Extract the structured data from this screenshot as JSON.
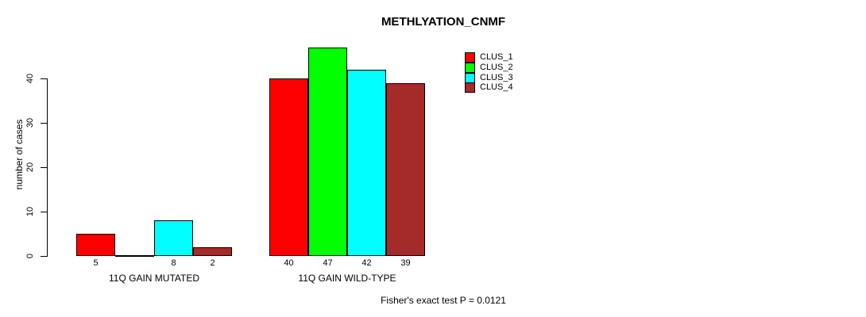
{
  "chart_data": {
    "type": "bar",
    "title": "METHLYATION_CNMF",
    "ylabel": "number of cases",
    "xlabel": "",
    "categories": [
      "11Q GAIN MUTATED",
      "11Q GAIN WILD-TYPE"
    ],
    "series": [
      {
        "name": "CLUS_1",
        "color": "#ff0000",
        "values": [
          5,
          40
        ]
      },
      {
        "name": "CLUS_2",
        "color": "#00ff00",
        "values": [
          0,
          47
        ]
      },
      {
        "name": "CLUS_3",
        "color": "#00ffff",
        "values": [
          8,
          42
        ]
      },
      {
        "name": "CLUS_4",
        "color": "#a52a2a",
        "values": [
          2,
          39
        ]
      }
    ],
    "yticks": [
      0,
      10,
      20,
      30,
      40
    ],
    "ylim": [
      0,
      40
    ],
    "grid": false,
    "legend_position": "top-right",
    "bar_border_color": "#000000",
    "background_color": "#ffffff",
    "value_labels": {
      "shown": true,
      "zero_values_hidden": true
    },
    "annotation": "Fisher's exact test P = 0.0121"
  }
}
